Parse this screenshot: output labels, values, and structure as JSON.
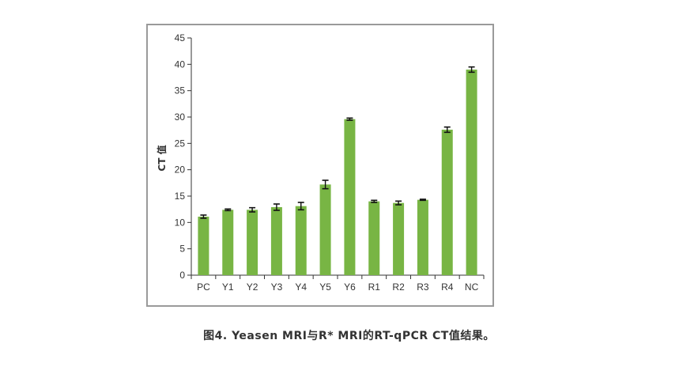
{
  "caption": "图4. Yeasen MRI与R* MRI的RT-qPCR CT值结果。",
  "colors": {
    "bar": "#78b544",
    "axis": "#333333",
    "frame": "#9a9a9a"
  },
  "chart_data": {
    "type": "bar",
    "title": "",
    "xlabel": "",
    "ylabel": "CT 值",
    "ylim": [
      0,
      45
    ],
    "yticks": [
      0,
      5,
      10,
      15,
      20,
      25,
      30,
      35,
      40,
      45
    ],
    "grid": false,
    "categories": [
      "PC",
      "Y1",
      "Y2",
      "Y3",
      "Y4",
      "Y5",
      "Y6",
      "R1",
      "R2",
      "R3",
      "R4",
      "NC"
    ],
    "values": [
      11.1,
      12.4,
      12.4,
      12.9,
      13.1,
      17.2,
      29.6,
      14.0,
      13.7,
      14.3,
      27.6,
      39.0
    ],
    "errors": [
      0.3,
      0.15,
      0.4,
      0.6,
      0.7,
      0.8,
      0.2,
      0.2,
      0.35,
      0.1,
      0.5,
      0.5
    ]
  }
}
